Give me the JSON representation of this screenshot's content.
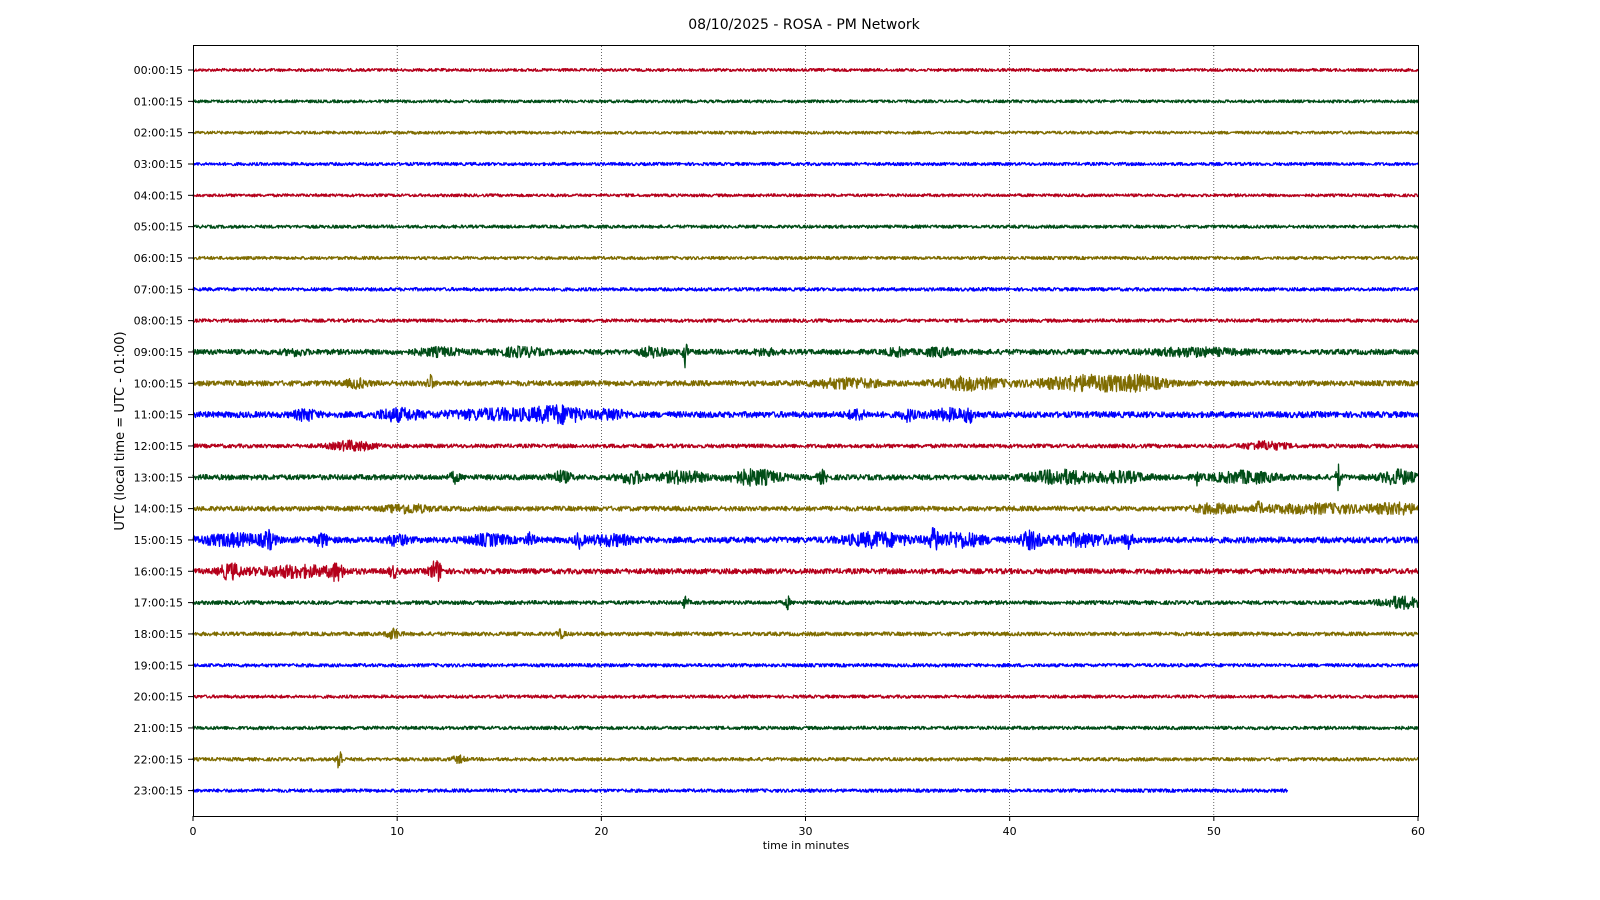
{
  "chart_data": {
    "type": "line",
    "title": "08/10/2025 - ROSA - PM Network",
    "xlabel": "time in minutes",
    "ylabel": "UTC (local time = UTC - 01:00)",
    "xlim": [
      0,
      60
    ],
    "xticks": [
      0,
      10,
      20,
      30,
      40,
      50,
      60
    ],
    "grid": "vertical dotted at 10-minute intervals",
    "colors": [
      "#b5001b",
      "#004d17",
      "#7f6c00",
      "#0000ff"
    ],
    "traces": [
      {
        "label": "00:00:15",
        "end": 60,
        "noise": 0.12,
        "events": []
      },
      {
        "label": "01:00:15",
        "end": 60,
        "noise": 0.12,
        "events": []
      },
      {
        "label": "02:00:15",
        "end": 60,
        "noise": 0.12,
        "events": []
      },
      {
        "label": "03:00:15",
        "end": 60,
        "noise": 0.13,
        "events": []
      },
      {
        "label": "04:00:15",
        "end": 60,
        "noise": 0.12,
        "events": []
      },
      {
        "label": "05:00:15",
        "end": 60,
        "noise": 0.13,
        "events": []
      },
      {
        "label": "06:00:15",
        "end": 60,
        "noise": 0.13,
        "events": []
      },
      {
        "label": "07:00:15",
        "end": 60,
        "noise": 0.14,
        "events": []
      },
      {
        "label": "08:00:15",
        "end": 60,
        "noise": 0.14,
        "events": []
      },
      {
        "label": "09:00:15",
        "end": 60,
        "noise": 0.22,
        "events": [
          {
            "t": 5,
            "w": 0.5,
            "a": 0.2
          },
          {
            "t": 12,
            "w": 1.0,
            "a": 0.25
          },
          {
            "t": 16,
            "w": 1.0,
            "a": 0.3
          },
          {
            "t": 22.5,
            "w": 0.6,
            "a": 0.3
          },
          {
            "t": 24.1,
            "w": 0.1,
            "a": 1.1
          },
          {
            "t": 28,
            "w": 0.5,
            "a": 0.2
          },
          {
            "t": 34.5,
            "w": 0.5,
            "a": 0.25
          },
          {
            "t": 36.5,
            "w": 0.8,
            "a": 0.25
          },
          {
            "t": 49,
            "w": 2.0,
            "a": 0.25
          }
        ]
      },
      {
        "label": "10:00:15",
        "end": 60,
        "noise": 0.22,
        "events": [
          {
            "t": 8,
            "w": 0.5,
            "a": 0.3
          },
          {
            "t": 11.6,
            "w": 0.15,
            "a": 0.6
          },
          {
            "t": 32,
            "w": 1.5,
            "a": 0.35
          },
          {
            "t": 38,
            "w": 1.5,
            "a": 0.45
          },
          {
            "t": 44,
            "w": 2.5,
            "a": 0.55
          },
          {
            "t": 46.5,
            "w": 1.0,
            "a": 0.35
          }
        ]
      },
      {
        "label": "11:00:15",
        "end": 60,
        "noise": 0.25,
        "events": [
          {
            "t": 5.5,
            "w": 0.5,
            "a": 0.4
          },
          {
            "t": 10,
            "w": 1.0,
            "a": 0.4
          },
          {
            "t": 15,
            "w": 2.5,
            "a": 0.35
          },
          {
            "t": 18,
            "w": 1.2,
            "a": 0.55
          },
          {
            "t": 20.5,
            "w": 0.6,
            "a": 0.4
          },
          {
            "t": 32.5,
            "w": 0.4,
            "a": 0.35
          },
          {
            "t": 35,
            "w": 0.3,
            "a": 0.4
          },
          {
            "t": 37,
            "w": 1.0,
            "a": 0.35
          },
          {
            "t": 38,
            "w": 0.2,
            "a": 0.45
          }
        ]
      },
      {
        "label": "12:00:15",
        "end": 60,
        "noise": 0.16,
        "events": [
          {
            "t": 7.8,
            "w": 1.0,
            "a": 0.35
          },
          {
            "t": 52.5,
            "w": 1.0,
            "a": 0.3
          }
        ]
      },
      {
        "label": "13:00:15",
        "end": 60,
        "noise": 0.22,
        "events": [
          {
            "t": 12.8,
            "w": 0.2,
            "a": 0.4
          },
          {
            "t": 18,
            "w": 0.5,
            "a": 0.4
          },
          {
            "t": 21.5,
            "w": 0.6,
            "a": 0.45
          },
          {
            "t": 24,
            "w": 1.0,
            "a": 0.45
          },
          {
            "t": 27.5,
            "w": 1.2,
            "a": 0.55
          },
          {
            "t": 30.8,
            "w": 0.2,
            "a": 0.45
          },
          {
            "t": 42.5,
            "w": 1.5,
            "a": 0.5
          },
          {
            "t": 45.5,
            "w": 1.2,
            "a": 0.35
          },
          {
            "t": 49.2,
            "w": 0.1,
            "a": 0.5
          },
          {
            "t": 51.5,
            "w": 1.5,
            "a": 0.4
          },
          {
            "t": 56.1,
            "w": 0.1,
            "a": 1.1
          },
          {
            "t": 59,
            "w": 0.8,
            "a": 0.5
          }
        ]
      },
      {
        "label": "14:00:15",
        "end": 60,
        "noise": 0.2,
        "events": [
          {
            "t": 10.5,
            "w": 1.0,
            "a": 0.3
          },
          {
            "t": 50,
            "w": 1.0,
            "a": 0.3
          },
          {
            "t": 52.2,
            "w": 0.1,
            "a": 0.55
          },
          {
            "t": 55,
            "w": 3.0,
            "a": 0.3
          },
          {
            "t": 59,
            "w": 1.0,
            "a": 0.35
          }
        ]
      },
      {
        "label": "15:00:15",
        "end": 60,
        "noise": 0.25,
        "events": [
          {
            "t": 2,
            "w": 1.5,
            "a": 0.4
          },
          {
            "t": 3.7,
            "w": 0.3,
            "a": 0.55
          },
          {
            "t": 6.3,
            "w": 0.3,
            "a": 0.45
          },
          {
            "t": 10,
            "w": 0.5,
            "a": 0.35
          },
          {
            "t": 14.5,
            "w": 1.0,
            "a": 0.35
          },
          {
            "t": 16.5,
            "w": 0.2,
            "a": 0.45
          },
          {
            "t": 18.9,
            "w": 0.2,
            "a": 0.5
          },
          {
            "t": 20.5,
            "w": 1.0,
            "a": 0.35
          },
          {
            "t": 33.5,
            "w": 1.5,
            "a": 0.5
          },
          {
            "t": 36.3,
            "w": 0.2,
            "a": 0.8
          },
          {
            "t": 37.5,
            "w": 1.2,
            "a": 0.5
          },
          {
            "t": 41,
            "w": 0.5,
            "a": 0.6
          },
          {
            "t": 43.5,
            "w": 1.5,
            "a": 0.4
          },
          {
            "t": 45.8,
            "w": 0.2,
            "a": 0.5
          }
        ]
      },
      {
        "label": "16:00:15",
        "end": 60,
        "noise": 0.22,
        "events": [
          {
            "t": 1.8,
            "w": 0.5,
            "a": 0.55
          },
          {
            "t": 5,
            "w": 2.0,
            "a": 0.4
          },
          {
            "t": 7,
            "w": 0.3,
            "a": 0.55
          },
          {
            "t": 9.8,
            "w": 0.2,
            "a": 0.45
          },
          {
            "t": 11.9,
            "w": 0.3,
            "a": 0.85
          }
        ]
      },
      {
        "label": "17:00:15",
        "end": 60,
        "noise": 0.16,
        "events": [
          {
            "t": 24.1,
            "w": 0.15,
            "a": 0.4
          },
          {
            "t": 29.1,
            "w": 0.1,
            "a": 0.55
          },
          {
            "t": 59.2,
            "w": 1.0,
            "a": 0.45
          }
        ]
      },
      {
        "label": "18:00:15",
        "end": 60,
        "noise": 0.16,
        "events": [
          {
            "t": 9.8,
            "w": 0.3,
            "a": 0.4
          },
          {
            "t": 18,
            "w": 0.2,
            "a": 0.3
          }
        ]
      },
      {
        "label": "19:00:15",
        "end": 60,
        "noise": 0.14,
        "events": []
      },
      {
        "label": "20:00:15",
        "end": 60,
        "noise": 0.13,
        "events": []
      },
      {
        "label": "21:00:15",
        "end": 60,
        "noise": 0.14,
        "events": []
      },
      {
        "label": "22:00:15",
        "end": 60,
        "noise": 0.14,
        "events": [
          {
            "t": 7.15,
            "w": 0.12,
            "a": 1.2
          },
          {
            "t": 13,
            "w": 0.3,
            "a": 0.25
          }
        ]
      },
      {
        "label": "23:00:15",
        "end": 53.6,
        "noise": 0.14,
        "events": []
      }
    ]
  }
}
